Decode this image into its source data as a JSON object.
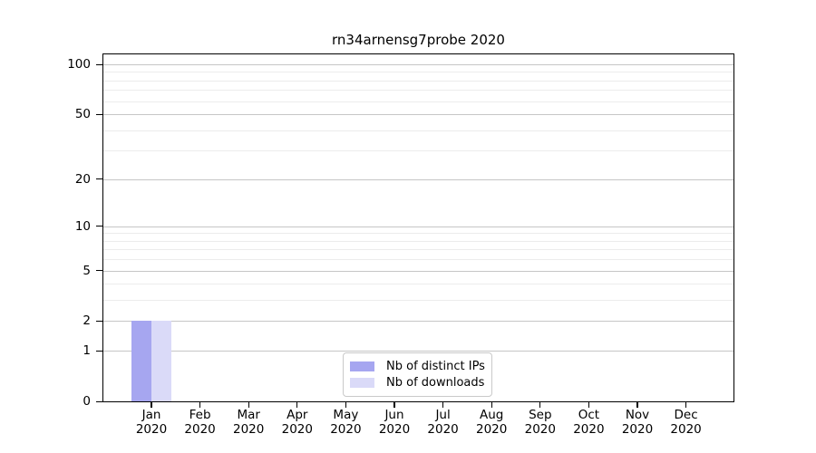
{
  "title": "rn34arnensg7probe 2020",
  "legend": {
    "items": [
      {
        "label": "Nb of distinct IPs",
        "color": "#a6a6f0"
      },
      {
        "label": "Nb of downloads",
        "color": "#dadaf8"
      }
    ]
  },
  "chart_data": {
    "type": "bar",
    "title": "rn34arnensg7probe 2020",
    "categories": [
      "Jan 2020",
      "Feb 2020",
      "Mar 2020",
      "Apr 2020",
      "May 2020",
      "Jun 2020",
      "Jul 2020",
      "Aug 2020",
      "Sep 2020",
      "Oct 2020",
      "Nov 2020",
      "Dec 2020"
    ],
    "x_tick_labels": [
      {
        "line1": "Jan",
        "line2": "2020"
      },
      {
        "line1": "Feb",
        "line2": "2020"
      },
      {
        "line1": "Mar",
        "line2": "2020"
      },
      {
        "line1": "Apr",
        "line2": "2020"
      },
      {
        "line1": "May",
        "line2": "2020"
      },
      {
        "line1": "Jun",
        "line2": "2020"
      },
      {
        "line1": "Jul",
        "line2": "2020"
      },
      {
        "line1": "Aug",
        "line2": "2020"
      },
      {
        "line1": "Sep",
        "line2": "2020"
      },
      {
        "line1": "Oct",
        "line2": "2020"
      },
      {
        "line1": "Nov",
        "line2": "2020"
      },
      {
        "line1": "Dec",
        "line2": "2020"
      }
    ],
    "series": [
      {
        "name": "Nb of distinct IPs",
        "color": "#a6a6f0",
        "values": [
          2,
          0,
          0,
          0,
          0,
          0,
          0,
          0,
          0,
          0,
          0,
          0
        ]
      },
      {
        "name": "Nb of downloads",
        "color": "#dadaf8",
        "values": [
          2,
          0,
          0,
          0,
          0,
          0,
          0,
          0,
          0,
          0,
          0,
          0
        ]
      }
    ],
    "y_axis": {
      "scale": "log1p",
      "tick_labels": [
        0,
        1,
        2,
        5,
        10,
        20,
        50,
        100
      ],
      "minor_gridlines": [
        3,
        4,
        6,
        7,
        8,
        9,
        30,
        40,
        60,
        70,
        80,
        90
      ],
      "ylim": [
        0,
        115
      ]
    },
    "grid": "horizontal",
    "legend_position": "lower center",
    "colors": {
      "bar_distinct_ips": "#a6a6f0",
      "bar_downloads": "#dadaf8",
      "grid_major": "#c6c6c6",
      "grid_minor": "#ececec",
      "axis": "#000000",
      "text": "#000000"
    }
  }
}
